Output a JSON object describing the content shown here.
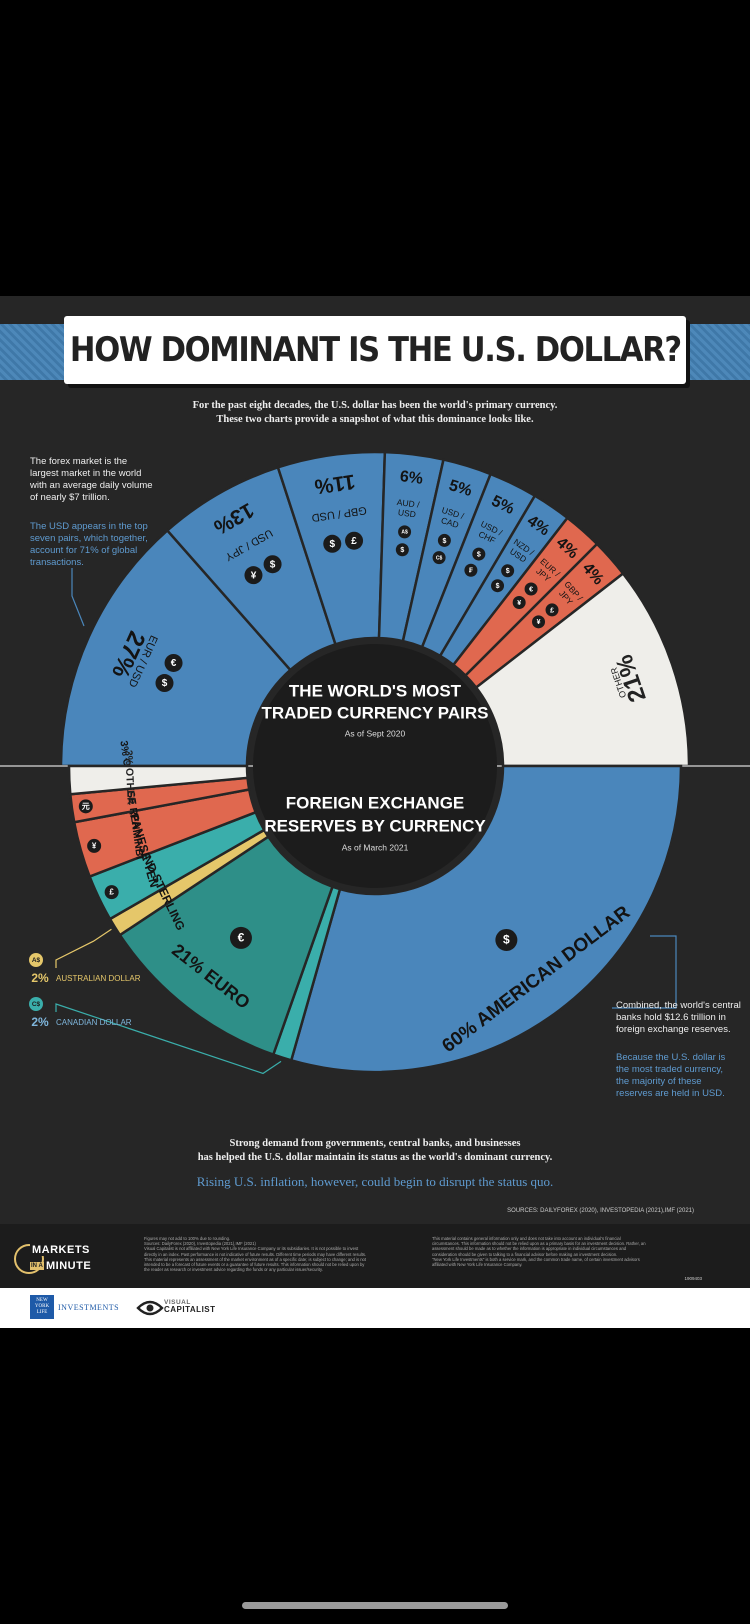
{
  "title": "HOW DOMINANT IS THE U.S. DOLLAR?",
  "intro": [
    "For the past eight decades, the U.S. dollar has been the world's primary currency.",
    "These two charts provide a snapshot of what this dominance looks like."
  ],
  "notes": {
    "forex_white": [
      "The forex market is the",
      "largest market in the world",
      "with an average daily volume",
      "of nearly $7 trillion."
    ],
    "forex_blue": [
      "The USD appears in the top",
      "seven pairs, which together,",
      "account for 71% of global",
      "transactions."
    ],
    "reserves_white": [
      "Combined, the world's central",
      "banks hold $12.6 trillion in",
      "foreign exchange reserves."
    ],
    "reserves_blue": [
      "Because the U.S. dollar is",
      "the most traded currency,",
      "the majority of these",
      "reserves are held in USD."
    ]
  },
  "center_top": {
    "line1": "THE WORLD'S MOST",
    "line2": "TRADED CURRENCY PAIRS",
    "date": "As of Sept 2020"
  },
  "center_bottom": {
    "line1": "FOREIGN EXCHANGE",
    "line2": "RESERVES BY CURRENCY",
    "date": "As of March 2021"
  },
  "colors": {
    "blue": "#4a86bb",
    "red": "#e0684f",
    "white": "#efeeea",
    "teal": "#2e8f88",
    "teal_light": "#3aaeab",
    "cream": "#f3e9c6",
    "gold": "#e5c76a",
    "bg": "#262626"
  },
  "chart_data": [
    {
      "type": "pie",
      "title": "THE WORLD'S MOST TRADED CURRENCY PAIRS",
      "subtitle": "As of Sept 2020",
      "slices": [
        {
          "label": "EUR / USD",
          "value": 27,
          "percent": "27%",
          "symbols": [
            "€",
            "$"
          ],
          "color": "blue"
        },
        {
          "label": "USD / JPY",
          "value": 13,
          "percent": "13%",
          "symbols": [
            "$",
            "¥"
          ],
          "color": "blue"
        },
        {
          "label": "GBP / USD",
          "value": 11,
          "percent": "11%",
          "symbols": [
            "£",
            "$"
          ],
          "color": "blue"
        },
        {
          "label": "AUD / USD",
          "value": 6,
          "percent": "6%",
          "symbols": [
            "A$",
            "$"
          ],
          "color": "blue"
        },
        {
          "label": "USD / CAD",
          "value": 5,
          "percent": "5%",
          "symbols": [
            "$",
            "C$"
          ],
          "color": "blue"
        },
        {
          "label": "USD / CHF",
          "value": 5,
          "percent": "5%",
          "symbols": [
            "$",
            "₣"
          ],
          "color": "blue"
        },
        {
          "label": "NZD / USD",
          "value": 4,
          "percent": "4%",
          "symbols": [
            "$",
            "$"
          ],
          "color": "blue"
        },
        {
          "label": "EUR / JPY",
          "value": 4,
          "percent": "4%",
          "symbols": [
            "€",
            "¥"
          ],
          "color": "red"
        },
        {
          "label": "GBP / JPY",
          "value": 4,
          "percent": "4%",
          "symbols": [
            "£",
            "¥"
          ],
          "color": "red"
        },
        {
          "label": "OTHER",
          "value": 21,
          "percent": "21%",
          "symbols": [],
          "color": "white"
        }
      ]
    },
    {
      "type": "pie",
      "title": "FOREIGN EXCHANGE RESERVES BY CURRENCY",
      "subtitle": "As of March 2021",
      "slices": [
        {
          "label": "AMERICAN DOLLAR",
          "value": 60,
          "percent": "60%",
          "symbol": "$",
          "color": "blue"
        },
        {
          "label": "CANADIAN DOLLAR",
          "value": 2,
          "percent": "2%",
          "symbol": "C$",
          "color": "teal_light"
        },
        {
          "label": "EURO",
          "value": 21,
          "percent": "21%",
          "symbol": "€",
          "color": "teal"
        },
        {
          "label": "AUSTRALIAN DOLLAR",
          "value": 2,
          "percent": "2%",
          "symbol": "A$",
          "color": "gold"
        },
        {
          "label": "POUND STERLING",
          "value": 5,
          "percent": "5%",
          "symbol": "£",
          "color": "teal_light"
        },
        {
          "label": "JAPANESE YEN",
          "value": 6,
          "percent": "6%",
          "symbol": "¥",
          "color": "red"
        },
        {
          "label": "CHINESE RENMINBI",
          "value": 3,
          "percent": "3%",
          "symbol": "元",
          "color": "red"
        },
        {
          "label": "OTHER",
          "value": 3,
          "percent": "3%",
          "symbol": "",
          "color": "white"
        }
      ]
    }
  ],
  "callouts": {
    "aud": {
      "badge": "A$",
      "percent": "2%",
      "label": "AUSTRALIAN DOLLAR"
    },
    "cad": {
      "badge": "C$",
      "percent": "2%",
      "label": "CANADIAN DOLLAR"
    }
  },
  "closing": {
    "line1": "Strong demand from governments, central banks, and businesses",
    "line2": "has helped the U.S. dollar maintain its status as the world's dominant currency.",
    "highlight": "Rising U.S. inflation, however, could begin to disrupt the status quo."
  },
  "sources": "SOURCES: DAILYFOREX (2020), INVESTOPEDIA (2021),IMF (2021)",
  "footer": {
    "brand_line1": "MARKETS",
    "brand_in_a": "IN A",
    "brand_line2": "MINUTE",
    "fine_left": [
      "Figures may not add to 100% due to rounding.",
      "Sources: DailyForex (2020), Investopedia (2021),IMF (2021)",
      "Visual Capitalist is not affiliated with New York Life Insurance Company or its subsidiaries. It is not possible to invest",
      "directly in an index. Past performance is not indicative of future results. Different time periods may have different results.",
      "This material represents an assessment of the market environment as of a specific date; is subject to change; and is not",
      "intended to be a forecast of future events or a guarantee of future results. This information should not be relied upon by",
      "the reader as research or investment advice regarding the funds or any particular issuer/security."
    ],
    "fine_right": [
      "This material contains general information only and does not take into account an individual's financial",
      "circumstances. This information should not be relied upon as a primary basis for an investment decision. Rather, an",
      "assessment should be made as to whether the information is appropriate in individual circumstances and",
      "consideration should be given to talking to a financial advisor before making an investment decision.",
      "\"New York Life Investments\" is both a service mark, and the common trade name, of certain investment advisors",
      "affiliated with New York Life Insurance Company."
    ],
    "code": "1909403",
    "nyl_logo_text": [
      "NEW",
      "YORK",
      "LIFE"
    ],
    "investments": "INVESTMENTS",
    "vc_line1": "VISUAL",
    "vc_line2": "CAPITALIST"
  }
}
